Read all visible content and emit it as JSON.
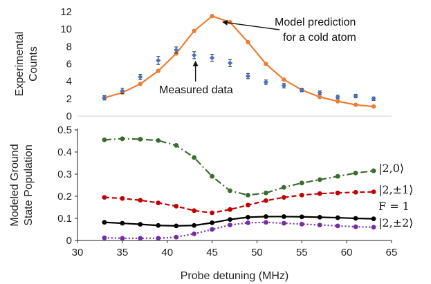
{
  "chart_data": [
    {
      "type": "scatter",
      "ylabel": [
        "Experimental",
        "Counts"
      ],
      "ylim": [
        0,
        12
      ],
      "yticks": [
        0,
        2,
        4,
        6,
        8,
        10,
        12
      ],
      "xlim": [
        30,
        65
      ],
      "series": [
        {
          "name": "Model prediction for a cold atom",
          "style": "line",
          "color": "#ed7d31",
          "x": [
            33,
            35,
            37,
            39,
            41,
            43,
            45,
            47,
            49,
            51,
            53,
            55,
            57,
            59,
            61,
            63
          ],
          "y": [
            2.1,
            2.7,
            3.7,
            5.2,
            7.2,
            9.8,
            11.5,
            10.8,
            8.5,
            6.0,
            4.2,
            3.0,
            2.2,
            1.7,
            1.3,
            1.1
          ]
        },
        {
          "name": "Measured data",
          "style": "points-with-error-bars",
          "color": "#4472c4",
          "x": [
            33,
            35,
            37,
            39,
            41,
            43,
            45,
            47,
            49,
            51,
            53,
            55,
            57,
            59,
            61,
            63
          ],
          "y": [
            2.1,
            2.9,
            4.5,
            6.4,
            7.6,
            7.0,
            6.7,
            6.1,
            4.6,
            3.9,
            3.5,
            3.0,
            2.7,
            2.2,
            2.3,
            2.0
          ],
          "err": [
            0.25,
            0.3,
            0.3,
            0.45,
            0.35,
            0.4,
            0.4,
            0.4,
            0.3,
            0.25,
            0.25,
            0.2,
            0.2,
            0.2,
            0.2,
            0.2
          ]
        }
      ],
      "annotations": [
        {
          "text": "Model prediction",
          "line2": "for a cold atom",
          "arrow_to": [
            45.8,
            11.2
          ]
        },
        {
          "text": "Measured data",
          "arrow_to": [
            43,
            7.0
          ]
        }
      ]
    },
    {
      "type": "line",
      "ylabel": [
        "Modeled Ground",
        "State  Population"
      ],
      "xlabel": "Probe detuning (MHz)",
      "xlim": [
        30,
        65
      ],
      "xticks": [
        30,
        35,
        40,
        45,
        50,
        55,
        60,
        65
      ],
      "ylim": [
        0,
        0.5
      ],
      "yticks": [
        0,
        0.1,
        0.2,
        0.3,
        0.4,
        0.5
      ],
      "series": [
        {
          "name": "|2,0⟩",
          "color": "#3b6b2f",
          "dash": "10,4,2,4",
          "x": [
            33,
            35,
            37,
            39,
            41,
            43,
            45,
            47,
            49,
            51,
            53,
            55,
            57,
            59,
            61,
            63
          ],
          "y": [
            0.455,
            0.46,
            0.458,
            0.452,
            0.43,
            0.375,
            0.29,
            0.225,
            0.205,
            0.215,
            0.24,
            0.26,
            0.275,
            0.29,
            0.305,
            0.315
          ]
        },
        {
          "name": "|2,±1⟩",
          "color": "#c00000",
          "dash": "7,4",
          "x": [
            33,
            35,
            37,
            39,
            41,
            43,
            45,
            47,
            49,
            51,
            53,
            55,
            57,
            59,
            61,
            63
          ],
          "y": [
            0.195,
            0.19,
            0.182,
            0.17,
            0.155,
            0.135,
            0.125,
            0.14,
            0.16,
            0.18,
            0.195,
            0.205,
            0.212,
            0.215,
            0.218,
            0.22
          ]
        },
        {
          "name": "F = 1",
          "color": "#000000",
          "dash": "",
          "x": [
            33,
            35,
            37,
            39,
            41,
            43,
            45,
            47,
            49,
            51,
            53,
            55,
            57,
            59,
            61,
            63
          ],
          "y": [
            0.082,
            0.078,
            0.073,
            0.068,
            0.066,
            0.068,
            0.08,
            0.095,
            0.105,
            0.108,
            0.108,
            0.107,
            0.105,
            0.103,
            0.1,
            0.098
          ]
        },
        {
          "name": "|2,±2⟩",
          "color": "#7030a0",
          "dash": "2,3",
          "x": [
            33,
            35,
            37,
            39,
            41,
            43,
            45,
            47,
            49,
            51,
            53,
            55,
            57,
            59,
            61,
            63
          ],
          "y": [
            0.012,
            0.01,
            0.01,
            0.01,
            0.015,
            0.03,
            0.05,
            0.07,
            0.08,
            0.082,
            0.078,
            0.074,
            0.07,
            0.066,
            0.062,
            0.06
          ]
        }
      ]
    }
  ]
}
